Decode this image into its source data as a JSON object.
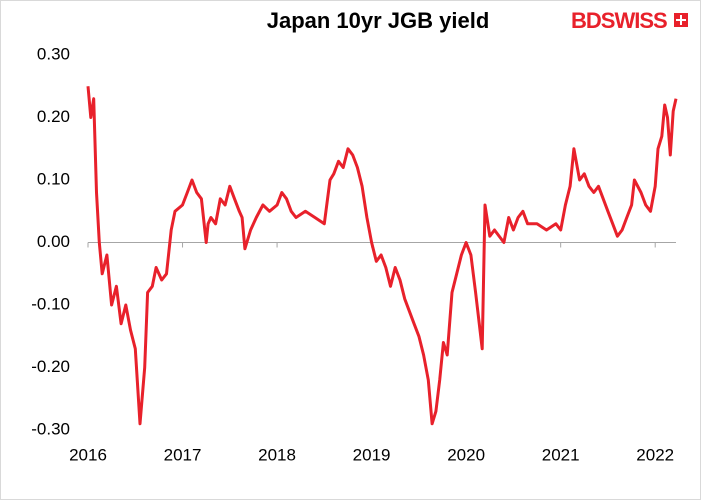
{
  "chart_data": {
    "type": "line",
    "title": "Japan 10yr JGB yield",
    "logo": "BDSWISS",
    "color": "#e8212b",
    "x": [
      2016.0,
      2016.03,
      2016.06,
      2016.09,
      2016.12,
      2016.15,
      2016.2,
      2016.25,
      2016.3,
      2016.35,
      2016.4,
      2016.45,
      2016.5,
      2016.55,
      2016.6,
      2016.63,
      2016.68,
      2016.72,
      2016.78,
      2016.83,
      2016.88,
      2016.92,
      2017.0,
      2017.05,
      2017.1,
      2017.15,
      2017.2,
      2017.25,
      2017.27,
      2017.3,
      2017.35,
      2017.4,
      2017.45,
      2017.5,
      2017.55,
      2017.6,
      2017.63,
      2017.66,
      2017.72,
      2017.78,
      2017.85,
      2017.92,
      2018.0,
      2018.05,
      2018.1,
      2018.15,
      2018.2,
      2018.3,
      2018.4,
      2018.5,
      2018.56,
      2018.6,
      2018.65,
      2018.7,
      2018.75,
      2018.8,
      2018.85,
      2018.9,
      2018.95,
      2019.0,
      2019.05,
      2019.1,
      2019.15,
      2019.2,
      2019.25,
      2019.3,
      2019.35,
      2019.4,
      2019.45,
      2019.5,
      2019.55,
      2019.6,
      2019.64,
      2019.68,
      2019.72,
      2019.76,
      2019.8,
      2019.85,
      2019.9,
      2019.95,
      2020.0,
      2020.05,
      2020.1,
      2020.17,
      2020.2,
      2020.25,
      2020.3,
      2020.4,
      2020.45,
      2020.5,
      2020.55,
      2020.6,
      2020.65,
      2020.75,
      2020.85,
      2020.95,
      2021.0,
      2021.05,
      2021.1,
      2021.14,
      2021.2,
      2021.25,
      2021.3,
      2021.35,
      2021.4,
      2021.45,
      2021.5,
      2021.55,
      2021.6,
      2021.65,
      2021.7,
      2021.75,
      2021.78,
      2021.85,
      2021.9,
      2021.95,
      2022.0,
      2022.03,
      2022.07,
      2022.1,
      2022.13,
      2022.16,
      2022.19,
      2022.22
    ],
    "values": [
      0.25,
      0.2,
      0.23,
      0.08,
      0.0,
      -0.05,
      -0.02,
      -0.1,
      -0.07,
      -0.13,
      -0.1,
      -0.14,
      -0.17,
      -0.29,
      -0.2,
      -0.08,
      -0.07,
      -0.04,
      -0.06,
      -0.05,
      0.02,
      0.05,
      0.06,
      0.08,
      0.1,
      0.08,
      0.07,
      0.0,
      0.03,
      0.04,
      0.03,
      0.07,
      0.06,
      0.09,
      0.07,
      0.05,
      0.04,
      -0.01,
      0.02,
      0.04,
      0.06,
      0.05,
      0.06,
      0.08,
      0.07,
      0.05,
      0.04,
      0.05,
      0.04,
      0.03,
      0.1,
      0.11,
      0.13,
      0.12,
      0.15,
      0.14,
      0.12,
      0.09,
      0.04,
      0.0,
      -0.03,
      -0.02,
      -0.04,
      -0.07,
      -0.04,
      -0.06,
      -0.09,
      -0.11,
      -0.13,
      -0.15,
      -0.18,
      -0.22,
      -0.29,
      -0.27,
      -0.22,
      -0.16,
      -0.18,
      -0.08,
      -0.05,
      -0.02,
      0.0,
      -0.02,
      -0.08,
      -0.17,
      0.06,
      0.01,
      0.02,
      0.0,
      0.04,
      0.02,
      0.04,
      0.05,
      0.03,
      0.03,
      0.02,
      0.03,
      0.02,
      0.06,
      0.09,
      0.15,
      0.1,
      0.11,
      0.09,
      0.08,
      0.09,
      0.07,
      0.05,
      0.03,
      0.01,
      0.02,
      0.04,
      0.06,
      0.1,
      0.08,
      0.06,
      0.05,
      0.09,
      0.15,
      0.17,
      0.22,
      0.2,
      0.14,
      0.21,
      0.23
    ],
    "xlim": [
      2016,
      2022.22
    ],
    "xticks": [
      2016,
      2017,
      2018,
      2019,
      2020,
      2021,
      2022
    ],
    "ylim": [
      -0.3,
      0.3
    ],
    "yticks": [
      {
        "value": 0.3,
        "label": "0.30"
      },
      {
        "value": 0.2,
        "label": "0.20"
      },
      {
        "value": 0.1,
        "label": "0.10"
      },
      {
        "value": 0,
        "label": "0.00"
      },
      {
        "value": -0.1,
        "label": "-0.10"
      },
      {
        "value": -0.2,
        "label": "-0.20"
      },
      {
        "value": -0.3,
        "label": "-0.30"
      }
    ]
  }
}
